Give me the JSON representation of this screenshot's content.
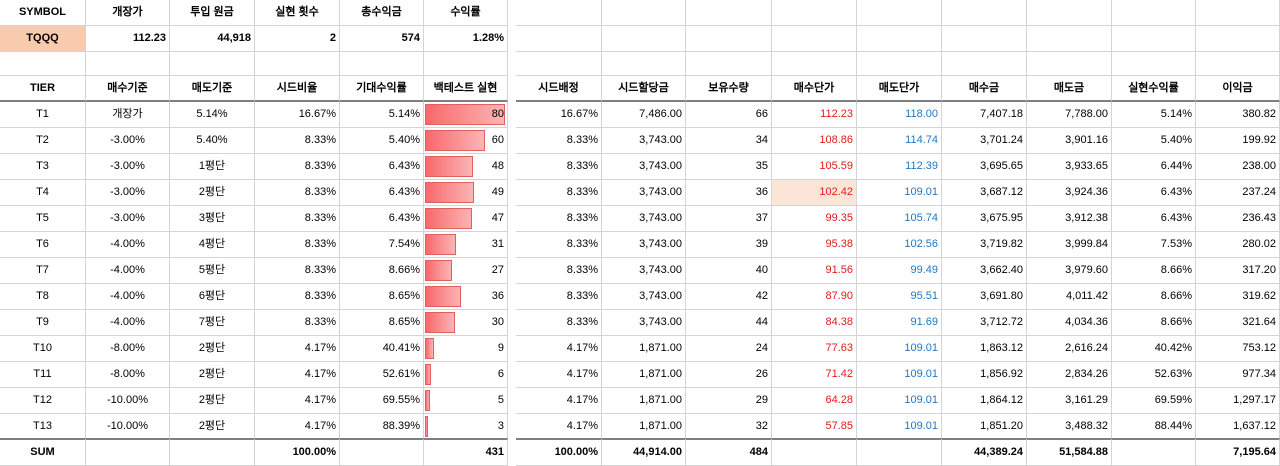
{
  "summary": {
    "headers": [
      "SYMBOL",
      "개장가",
      "투입 원금",
      "실현 횟수",
      "총수익금",
      "수익률"
    ],
    "values": [
      "TQQQ",
      "112.23",
      "44,918",
      "2",
      "574",
      "1.28%"
    ]
  },
  "table": {
    "headers": [
      "TIER",
      "매수기준",
      "매도기준",
      "시드비율",
      "기대수익률",
      "백테스트 실현",
      "시드배정",
      "시드할당금",
      "보유수량",
      "매수단가",
      "매도단가",
      "매수금",
      "매도금",
      "실현수익률",
      "이익금"
    ],
    "rows": [
      [
        "T1",
        "개장가",
        "5.14%",
        "16.67%",
        "5.14%",
        "80",
        "16.67%",
        "7,486.00",
        "66",
        "112.23",
        "118.00",
        "7,407.18",
        "7,788.00",
        "5.14%",
        "380.82"
      ],
      [
        "T2",
        "-3.00%",
        "5.40%",
        "8.33%",
        "5.40%",
        "60",
        "8.33%",
        "3,743.00",
        "34",
        "108.86",
        "114.74",
        "3,701.24",
        "3,901.16",
        "5.40%",
        "199.92"
      ],
      [
        "T3",
        "-3.00%",
        "1평단",
        "8.33%",
        "6.43%",
        "48",
        "8.33%",
        "3,743.00",
        "35",
        "105.59",
        "112.39",
        "3,695.65",
        "3,933.65",
        "6.44%",
        "238.00"
      ],
      [
        "T4",
        "-3.00%",
        "2평단",
        "8.33%",
        "6.43%",
        "49",
        "8.33%",
        "3,743.00",
        "36",
        "102.42",
        "109.01",
        "3,687.12",
        "3,924.36",
        "6.43%",
        "237.24"
      ],
      [
        "T5",
        "-3.00%",
        "3평단",
        "8.33%",
        "6.43%",
        "47",
        "8.33%",
        "3,743.00",
        "37",
        "99.35",
        "105.74",
        "3,675.95",
        "3,912.38",
        "6.43%",
        "236.43"
      ],
      [
        "T6",
        "-4.00%",
        "4평단",
        "8.33%",
        "7.54%",
        "31",
        "8.33%",
        "3,743.00",
        "39",
        "95.38",
        "102.56",
        "3,719.82",
        "3,999.84",
        "7.53%",
        "280.02"
      ],
      [
        "T7",
        "-4.00%",
        "5평단",
        "8.33%",
        "8.66%",
        "27",
        "8.33%",
        "3,743.00",
        "40",
        "91.56",
        "99.49",
        "3,662.40",
        "3,979.60",
        "8.66%",
        "317.20"
      ],
      [
        "T8",
        "-4.00%",
        "6평단",
        "8.33%",
        "8.65%",
        "36",
        "8.33%",
        "3,743.00",
        "42",
        "87.90",
        "95.51",
        "3,691.80",
        "4,011.42",
        "8.66%",
        "319.62"
      ],
      [
        "T9",
        "-4.00%",
        "7평단",
        "8.33%",
        "8.65%",
        "30",
        "8.33%",
        "3,743.00",
        "44",
        "84.38",
        "91.69",
        "3,712.72",
        "4,034.36",
        "8.66%",
        "321.64"
      ],
      [
        "T10",
        "-8.00%",
        "2평단",
        "4.17%",
        "40.41%",
        "9",
        "4.17%",
        "1,871.00",
        "24",
        "77.63",
        "109.01",
        "1,863.12",
        "2,616.24",
        "40.42%",
        "753.12"
      ],
      [
        "T11",
        "-8.00%",
        "2평단",
        "4.17%",
        "52.61%",
        "6",
        "4.17%",
        "1,871.00",
        "26",
        "71.42",
        "109.01",
        "1,856.92",
        "2,834.26",
        "52.63%",
        "977.34"
      ],
      [
        "T12",
        "-10.00%",
        "2평단",
        "4.17%",
        "69.55%",
        "5",
        "4.17%",
        "1,871.00",
        "29",
        "64.28",
        "109.01",
        "1,864.12",
        "3,161.29",
        "69.59%",
        "1,297.17"
      ],
      [
        "T13",
        "-10.00%",
        "2평단",
        "4.17%",
        "88.39%",
        "3",
        "4.17%",
        "1,871.00",
        "32",
        "57.85",
        "109.01",
        "1,851.20",
        "3,488.32",
        "88.44%",
        "1,637.12"
      ]
    ],
    "sum": [
      "SUM",
      "",
      "",
      "100.00%",
      "",
      "431",
      "100.00%",
      "44,914.00",
      "484",
      "",
      "",
      "44,389.24",
      "51,584.88",
      "",
      "7,195.64"
    ],
    "bar_max": 80,
    "highlighted_cell": {
      "row": 3,
      "col": 9
    }
  },
  "colors": {
    "symbol_bg": "#f8cbad",
    "buy_price": "#e31a1a",
    "sell_price": "#1f77c8",
    "highlight": "#fce4d6",
    "bar": "#f8696b"
  }
}
